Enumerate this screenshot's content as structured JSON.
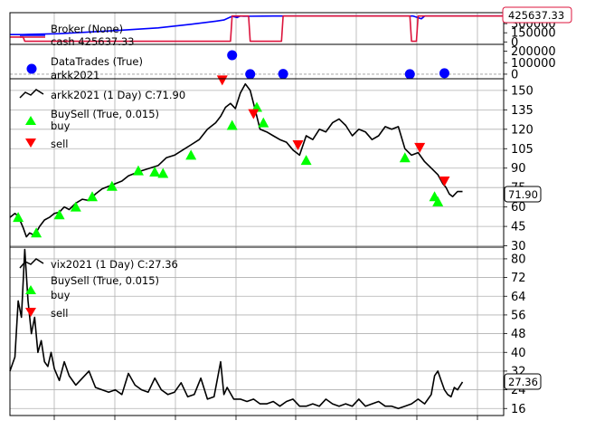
{
  "colors": {
    "broker_value": "#0000ff",
    "broker_cash": "#dc143c",
    "trades": "#0000ff",
    "price": "#000000",
    "buy": "#00ff00",
    "sell": "#ff0000",
    "grid": "#b0b0b0"
  },
  "broker": {
    "legend_title": "Broker (None)",
    "legend_line2": "cash 425637.33",
    "value_tag": "425637.33",
    "yticks": [
      "300000",
      "150000",
      "0"
    ]
  },
  "trades": {
    "legend_title": "DataTrades (True)",
    "legend_line2": "arkk2021",
    "yticks": [
      "200000",
      "100000",
      "0"
    ]
  },
  "arkk": {
    "legend_title": "arkk2021 (1 Day) C:71.90",
    "bs_title": "BuySell (True, 0.015)",
    "buy_label": "buy",
    "sell_label": "sell",
    "value_tag": "71.90",
    "yticks": [
      "150",
      "135",
      "120",
      "105",
      "90",
      "75",
      "60",
      "45",
      "30"
    ]
  },
  "vix": {
    "legend_title": "vix2021 (1 Day) C:27.36",
    "bs_title": "BuySell (True, 0.015)",
    "buy_label": "buy",
    "sell_label": "sell",
    "value_tag": "27.36",
    "yticks": [
      "80",
      "72",
      "64",
      "56",
      "48",
      "40",
      "32",
      "24",
      "16"
    ]
  },
  "chart_data": [
    {
      "type": "line",
      "panel": "broker",
      "series": [
        {
          "name": "Broker (None)",
          "x": [
            0,
            8,
            12,
            30,
            60,
            90,
            110,
            125,
            130,
            135,
            138,
            140,
            142,
            160,
            175,
            200,
            220,
            245,
            250,
            252,
            256,
            265,
            270,
            275,
            300
          ],
          "values": [
            120000,
            120000,
            125000,
            135000,
            180000,
            230000,
            290000,
            340000,
            360000,
            420000,
            400000,
            425000,
            420000,
            425000,
            425000,
            425000,
            425000,
            425000,
            380000,
            425000,
            425000,
            425000,
            425000,
            425000,
            425637.33
          ]
        },
        {
          "name": "cash 425637.33",
          "x": [
            0,
            8,
            9,
            134,
            135,
            145,
            146,
            165,
            166,
            243,
            244,
            247,
            248,
            258,
            259,
            270,
            300
          ],
          "values": [
            80000,
            80000,
            10000,
            10000,
            425000,
            425000,
            10000,
            10000,
            425000,
            425000,
            10000,
            10000,
            425000,
            425000,
            425000,
            425637.33,
            425637.33
          ]
        }
      ],
      "ylim": [
        -40000,
        480000
      ]
    },
    {
      "type": "scatter",
      "panel": "trades",
      "series": [
        {
          "name": "DataTrades (True)",
          "x": [
            135,
            146,
            166,
            243,
            264
          ],
          "values": [
            165000,
            0,
            2000,
            0,
            8000
          ]
        }
      ],
      "ylim": [
        -40000,
        260000
      ]
    },
    {
      "type": "line",
      "panel": "arkk",
      "series": [
        {
          "name": "arkk2021 (1 Day) C:71.90",
          "x": [
            0,
            3,
            5,
            8,
            10,
            12,
            15,
            18,
            21,
            24,
            27,
            30,
            33,
            36,
            40,
            44,
            48,
            52,
            56,
            60,
            64,
            68,
            72,
            76,
            80,
            85,
            90,
            95,
            100,
            105,
            110,
            115,
            120,
            125,
            128,
            131,
            134,
            137,
            140,
            143,
            146,
            149,
            152,
            156,
            160,
            164,
            168,
            172,
            176,
            180,
            184,
            188,
            192,
            196,
            200,
            204,
            208,
            212,
            216,
            220,
            224,
            228,
            232,
            236,
            240,
            244,
            248,
            252,
            256,
            260,
            263,
            265,
            267,
            269,
            272,
            275
          ],
          "values": [
            52,
            55,
            53,
            44,
            37,
            40,
            38,
            45,
            50,
            52,
            55,
            56,
            60,
            58,
            63,
            66,
            65,
            70,
            74,
            76,
            78,
            80,
            84,
            86,
            88,
            90,
            92,
            98,
            100,
            104,
            108,
            112,
            120,
            125,
            130,
            137,
            140,
            136,
            148,
            155,
            150,
            135,
            120,
            118,
            115,
            112,
            110,
            104,
            100,
            115,
            112,
            120,
            118,
            125,
            128,
            123,
            115,
            120,
            118,
            112,
            115,
            122,
            120,
            122,
            105,
            100,
            102,
            95,
            90,
            85,
            78,
            75,
            70,
            68,
            72,
            71.9
          ]
        }
      ],
      "buy_markers": {
        "x": [
          5,
          16,
          30,
          40,
          50,
          62,
          78,
          88,
          93,
          110,
          135,
          150,
          154,
          180,
          240,
          258,
          260
        ],
        "values": [
          52,
          40,
          54,
          60,
          68,
          76,
          88,
          87,
          86,
          100,
          123,
          137,
          125,
          96,
          98,
          68,
          64
        ]
      },
      "sell_markers": {
        "x": [
          129,
          148,
          175,
          249,
          264
        ],
        "values": [
          158,
          132,
          108,
          106,
          80
        ]
      },
      "ylim": [
        29,
        159
      ]
    },
    {
      "type": "line",
      "panel": "vix",
      "series": [
        {
          "name": "vix2021 (1 Day) C:27.36",
          "x": [
            0,
            3,
            5,
            7,
            9,
            11,
            13,
            15,
            17,
            19,
            21,
            23,
            25,
            27,
            30,
            33,
            36,
            40,
            44,
            48,
            52,
            56,
            60,
            64,
            68,
            72,
            76,
            80,
            84,
            88,
            92,
            96,
            100,
            104,
            108,
            112,
            116,
            120,
            124,
            128,
            130,
            132,
            136,
            140,
            144,
            148,
            152,
            156,
            160,
            164,
            168,
            172,
            176,
            180,
            184,
            188,
            192,
            196,
            200,
            204,
            208,
            212,
            216,
            220,
            224,
            228,
            232,
            236,
            240,
            244,
            248,
            252,
            256,
            258,
            260,
            262,
            264,
            266,
            268,
            270,
            272,
            275
          ],
          "values": [
            32,
            38,
            62,
            55,
            84,
            62,
            48,
            55,
            40,
            45,
            36,
            34,
            40,
            33,
            28,
            36,
            30,
            26,
            29,
            32,
            25,
            24,
            23,
            24,
            22,
            31,
            26,
            24,
            23,
            29,
            24,
            22,
            23,
            27,
            21,
            22,
            29,
            20,
            21,
            36,
            22,
            25,
            20,
            20,
            19,
            20,
            18,
            18,
            19,
            17,
            19,
            20,
            17,
            17,
            18,
            17,
            20,
            18,
            17,
            18,
            17,
            20,
            17,
            18,
            19,
            17,
            17,
            16,
            17,
            18,
            20,
            18,
            22,
            30,
            32,
            28,
            24,
            22,
            21,
            25,
            24,
            27.36
          ]
        }
      ],
      "buy_markers": {
        "x": [],
        "values": []
      },
      "sell_markers": {
        "x": [],
        "values": []
      },
      "ylim": [
        13,
        85
      ]
    }
  ]
}
